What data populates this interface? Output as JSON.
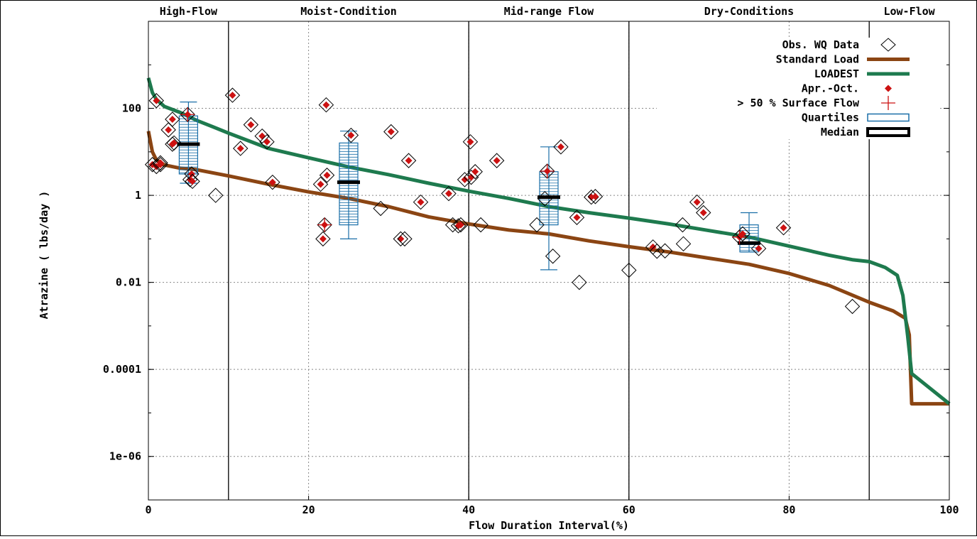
{
  "chart_data": {
    "type": "scatter",
    "title": "",
    "xlabel": "Flow Duration Interval(%)",
    "ylabel": "Atrazine ( lbs/day )",
    "x_range": [
      0,
      100
    ],
    "y_range": [
      1e-07,
      10000
    ],
    "y_scale": "log",
    "x_ticks": [
      "0",
      "20",
      "40",
      "60",
      "80",
      "100"
    ],
    "y_ticks": [
      "1e-06",
      "0.0001",
      "0.01",
      "1",
      "100"
    ],
    "grid": true,
    "legend_position": "top-right",
    "zones": [
      {
        "label": "High-Flow",
        "from": 0,
        "to": 10
      },
      {
        "label": "Moist-Condition",
        "from": 10,
        "to": 40
      },
      {
        "label": "Mid-range Flow",
        "from": 40,
        "to": 60
      },
      {
        "label": "Dry-Conditions",
        "from": 60,
        "to": 90
      },
      {
        "label": "Low-Flow",
        "from": 90,
        "to": 100
      }
    ],
    "legend": [
      {
        "label": "Obs. WQ Data",
        "symbol": "diamond-open"
      },
      {
        "label": "Standard Load",
        "symbol": "line",
        "color": "#8b4513"
      },
      {
        "label": "LOADEST",
        "symbol": "line",
        "color": "#1e7a4e"
      },
      {
        "label": "Apr.-Oct.",
        "symbol": "diamond-filled",
        "color": "#cc1111"
      },
      {
        "label": "> 50 % Surface Flow",
        "symbol": "plus",
        "color": "#cc1111"
      },
      {
        "label": "Quartiles",
        "symbol": "box",
        "color": "#1a6fa8"
      },
      {
        "label": "Median",
        "symbol": "bar"
      }
    ],
    "series": [
      {
        "name": "Standard Load",
        "color": "#8b4513",
        "points": [
          [
            0,
            30
          ],
          [
            0.5,
            10
          ],
          [
            1,
            6.5
          ],
          [
            2,
            5
          ],
          [
            4,
            4.2
          ],
          [
            6,
            3.9
          ],
          [
            8,
            3.3
          ],
          [
            10,
            2.8
          ],
          [
            15,
            1.8
          ],
          [
            20,
            1.2
          ],
          [
            25,
            0.85
          ],
          [
            30,
            0.55
          ],
          [
            35,
            0.32
          ],
          [
            40,
            0.22
          ],
          [
            45,
            0.16
          ],
          [
            50,
            0.13
          ],
          [
            55,
            0.09
          ],
          [
            60,
            0.066
          ],
          [
            65,
            0.05
          ],
          [
            70,
            0.036
          ],
          [
            75,
            0.026
          ],
          [
            80,
            0.016
          ],
          [
            85,
            0.0085
          ],
          [
            90,
            0.0035
          ],
          [
            93,
            0.0022
          ],
          [
            94.5,
            0.0015
          ],
          [
            95,
            0.00062
          ],
          [
            95.3,
            1.62e-05
          ],
          [
            100,
            1.62e-05
          ]
        ]
      },
      {
        "name": "LOADEST",
        "color": "#1e7a4e",
        "points": [
          [
            0,
            500
          ],
          [
            0.5,
            230
          ],
          [
            1,
            160
          ],
          [
            2,
            110
          ],
          [
            4,
            80
          ],
          [
            6,
            53
          ],
          [
            8,
            38
          ],
          [
            10,
            27
          ],
          [
            15,
            12
          ],
          [
            20,
            7.3
          ],
          [
            25,
            4.5
          ],
          [
            30,
            3
          ],
          [
            35,
            1.9
          ],
          [
            40,
            1.25
          ],
          [
            45,
            0.85
          ],
          [
            50,
            0.55
          ],
          [
            55,
            0.4
          ],
          [
            60,
            0.3
          ],
          [
            65,
            0.22
          ],
          [
            70,
            0.155
          ],
          [
            75,
            0.11
          ],
          [
            80,
            0.068
          ],
          [
            85,
            0.042
          ],
          [
            88,
            0.033
          ],
          [
            90,
            0.03
          ],
          [
            92,
            0.022
          ],
          [
            93.5,
            0.0145
          ],
          [
            94.2,
            0.005
          ],
          [
            94.8,
            0.0006
          ],
          [
            95.3,
            8e-05
          ],
          [
            100,
            1.62e-05
          ]
        ]
      }
    ],
    "observations": [
      {
        "x": 0.5,
        "y": 5.1,
        "season": true
      },
      {
        "x": 1,
        "y": 150,
        "season": true
      },
      {
        "x": 1,
        "y": 4.6,
        "season": true
      },
      {
        "x": 1.5,
        "y": 5.6,
        "season": true
      },
      {
        "x": 1.5,
        "y": 5.1,
        "season": true
      },
      {
        "x": 2.5,
        "y": 32,
        "season": true
      },
      {
        "x": 3,
        "y": 56,
        "season": true
      },
      {
        "x": 3,
        "y": 15,
        "season": true
      },
      {
        "x": 3.2,
        "y": 16,
        "season": true
      },
      {
        "x": 4.9,
        "y": 72,
        "season": true,
        "surface": true
      },
      {
        "x": 5.2,
        "y": 2.3,
        "season": true
      },
      {
        "x": 5.4,
        "y": 3.1,
        "season": true
      },
      {
        "x": 5.5,
        "y": 2.1,
        "season": true
      },
      {
        "x": 8.4,
        "y": 1.0,
        "season": false
      },
      {
        "x": 10.5,
        "y": 200,
        "season": true
      },
      {
        "x": 11.5,
        "y": 12,
        "season": true
      },
      {
        "x": 12.8,
        "y": 42,
        "season": true
      },
      {
        "x": 14.2,
        "y": 23,
        "season": true
      },
      {
        "x": 14.8,
        "y": 17,
        "season": true
      },
      {
        "x": 15.5,
        "y": 2.0,
        "season": true
      },
      {
        "x": 21.5,
        "y": 1.8,
        "season": true
      },
      {
        "x": 21.8,
        "y": 0.1,
        "season": true
      },
      {
        "x": 22,
        "y": 0.21,
        "season": true,
        "surface": true
      },
      {
        "x": 22.2,
        "y": 120,
        "season": true
      },
      {
        "x": 22.3,
        "y": 2.9,
        "season": true
      },
      {
        "x": 25.3,
        "y": 24,
        "season": true
      },
      {
        "x": 29,
        "y": 0.5,
        "season": false
      },
      {
        "x": 30.3,
        "y": 29,
        "season": true
      },
      {
        "x": 31.5,
        "y": 0.1,
        "season": true
      },
      {
        "x": 32,
        "y": 0.1,
        "season": false
      },
      {
        "x": 32.5,
        "y": 6.3,
        "season": true
      },
      {
        "x": 34,
        "y": 0.7,
        "season": true
      },
      {
        "x": 37.5,
        "y": 1.1,
        "season": true
      },
      {
        "x": 38,
        "y": 0.21,
        "season": false
      },
      {
        "x": 38.7,
        "y": 0.2,
        "season": true
      },
      {
        "x": 39,
        "y": 0.21,
        "season": true
      },
      {
        "x": 39.5,
        "y": 2.3,
        "season": true
      },
      {
        "x": 40.2,
        "y": 17,
        "season": true
      },
      {
        "x": 40.3,
        "y": 2.6,
        "season": true
      },
      {
        "x": 40.8,
        "y": 3.5,
        "season": true
      },
      {
        "x": 41.5,
        "y": 0.21,
        "season": false
      },
      {
        "x": 43.5,
        "y": 6.3,
        "season": true
      },
      {
        "x": 48.5,
        "y": 0.21,
        "season": false
      },
      {
        "x": 49.5,
        "y": 0.84,
        "season": false
      },
      {
        "x": 49.8,
        "y": 3.6,
        "season": true,
        "surface": true
      },
      {
        "x": 50.5,
        "y": 0.04,
        "season": false
      },
      {
        "x": 51.5,
        "y": 13,
        "season": true
      },
      {
        "x": 53.5,
        "y": 0.31,
        "season": true
      },
      {
        "x": 53.8,
        "y": 0.01,
        "season": false
      },
      {
        "x": 55.3,
        "y": 0.91,
        "season": true
      },
      {
        "x": 55.8,
        "y": 0.94,
        "season": true
      },
      {
        "x": 60,
        "y": 0.019,
        "season": false
      },
      {
        "x": 63,
        "y": 0.065,
        "season": true
      },
      {
        "x": 63.5,
        "y": 0.052,
        "season": false
      },
      {
        "x": 64.5,
        "y": 0.053,
        "season": false
      },
      {
        "x": 66.7,
        "y": 0.21,
        "season": false
      },
      {
        "x": 66.8,
        "y": 0.077,
        "season": false
      },
      {
        "x": 68.5,
        "y": 0.7,
        "season": true
      },
      {
        "x": 69.3,
        "y": 0.4,
        "season": true
      },
      {
        "x": 73.8,
        "y": 0.11,
        "season": true,
        "surface": true
      },
      {
        "x": 74.2,
        "y": 0.13,
        "season": true
      },
      {
        "x": 76.2,
        "y": 0.06,
        "season": true
      },
      {
        "x": 79.3,
        "y": 0.18,
        "season": true
      },
      {
        "x": 87.9,
        "y": 0.0028,
        "season": false
      }
    ],
    "boxes": [
      {
        "x": 5,
        "q1": 3.1,
        "median": 15,
        "q3": 67,
        "low": 1.9,
        "high": 140
      },
      {
        "x": 25,
        "q1": 0.21,
        "median": 2.0,
        "q3": 16,
        "low": 0.1,
        "high": 30
      },
      {
        "x": 50,
        "q1": 0.21,
        "median": 0.91,
        "q3": 3.5,
        "low": 0.0195,
        "high": 13
      },
      {
        "x": 75,
        "q1": 0.05,
        "median": 0.08,
        "q3": 0.21,
        "low": 0.05,
        "high": 0.4
      }
    ]
  }
}
